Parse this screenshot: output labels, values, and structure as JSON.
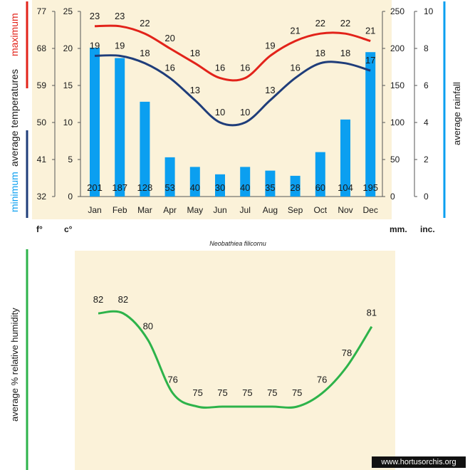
{
  "species": "Neobathiea filicornu",
  "watermark": "www.hortusorchis.org",
  "colors": {
    "background": "#fbf2d9",
    "maximum": "#e2231a",
    "minimum": "#1f3d7a",
    "rainfall": "#0b9ff0",
    "humidity": "#2db34a"
  },
  "chart_data": [
    {
      "type": "bar+line",
      "categories": [
        "Jan",
        "Feb",
        "Mar",
        "Apr",
        "May",
        "Jun",
        "Jul",
        "Aug",
        "Sep",
        "Oct",
        "Nov",
        "Dec"
      ],
      "series": [
        {
          "name": "maximum",
          "kind": "line",
          "axis": "celsius",
          "values": [
            23,
            23,
            22,
            20,
            18,
            16,
            16,
            19,
            21,
            22,
            22,
            21
          ]
        },
        {
          "name": "minimum",
          "kind": "line",
          "axis": "celsius",
          "values": [
            19,
            19,
            18,
            16,
            13,
            10,
            10,
            13,
            16,
            18,
            18,
            17
          ]
        },
        {
          "name": "average rainfall",
          "kind": "bar",
          "axis": "mm",
          "values": [
            201,
            187,
            128,
            53,
            40,
            30,
            40,
            35,
            28,
            60,
            104,
            195
          ]
        }
      ],
      "ylabel_left": [
        "minimum",
        "average temperatures",
        "maximum"
      ],
      "ylabel_right": "average rainfall",
      "y_axes": {
        "fahrenheit": {
          "unit_label": "f°",
          "ticks": [
            "32",
            "41",
            "50",
            "59",
            "68",
            "77"
          ]
        },
        "celsius": {
          "unit_label": "c°",
          "ticks": [
            "0",
            "5",
            "10",
            "15",
            "20",
            "25"
          ],
          "ylim": [
            0,
            25
          ]
        },
        "mm": {
          "unit_label": "mm.",
          "ticks": [
            "0",
            "50",
            "100",
            "150",
            "200",
            "250"
          ],
          "ylim": [
            0,
            250
          ]
        },
        "inches": {
          "unit_label": "inc.",
          "ticks": [
            "0",
            "2",
            "4",
            "6",
            "8",
            "10"
          ]
        }
      },
      "grid": false
    },
    {
      "type": "line",
      "categories": [
        "Jan",
        "Feb",
        "Mar",
        "Apr",
        "May",
        "Jun",
        "Jul",
        "Aug",
        "Sep",
        "Oct",
        "Nov",
        "Dec"
      ],
      "series": [
        {
          "name": "average % relative humidity",
          "values": [
            82,
            82,
            80,
            76,
            75,
            75,
            75,
            75,
            75,
            76,
            78,
            81
          ]
        }
      ],
      "ylabel": "average %  relative humidity",
      "grid": false
    }
  ]
}
